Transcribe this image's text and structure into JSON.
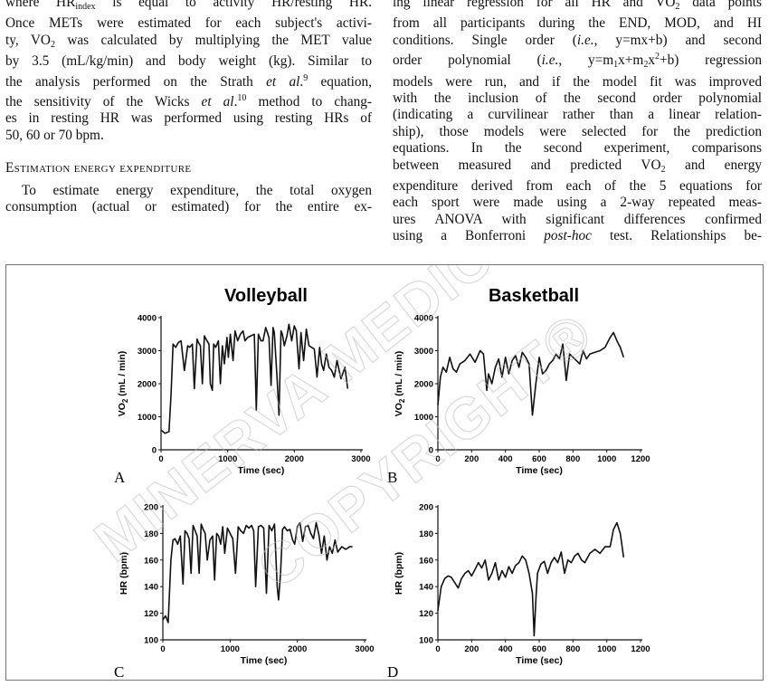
{
  "text": {
    "left": {
      "l1_a": "where HR",
      "l1_sub": "index",
      "l1_b": " is equal to activity HR/resting HR.",
      "l2": "Once METs were estimated for each subject's activi-",
      "l3_a": "ty, VO",
      "l3_sub": "2",
      "l3_b": " was calculated by multiplying the MET value",
      "l4": "by 3.5 (mL/kg/min) and body weight (kg). Similar to",
      "l5_a": "the analysis performed on the Strath ",
      "l5_it": "et al",
      "l5_b": ".",
      "l5_sup": "9",
      "l5_c": " equation,",
      "l6_a": "the sensitivity of the Wicks ",
      "l6_it": "et al",
      "l6_b": ".",
      "l6_sup": "10",
      "l6_c": " method to chang-",
      "l7": "es in resting HR was performed using resting HRs of",
      "l8": "50, 60 or 70 bpm.",
      "heading": "Estimation energy expenditure",
      "l9": "To estimate energy expenditure, the total oxygen",
      "l10": "consumption (actual or estimated) for the entire ex-"
    },
    "right": {
      "r1_a": "ing linear regression for all HR and VO",
      "r1_sub": "2",
      "r1_b": " data points",
      "r2": "from all participants during the END, MOD, and HI",
      "r3_a": "conditions. Single order (",
      "r3_it": "i.e.",
      "r3_b": ", y=mx+b) and second",
      "r4_a": "order polynomial (",
      "r4_it": "i.e.",
      "r4_b": ",  y=m",
      "r4_s1": "1",
      "r4_c": "x+m",
      "r4_s2": "2",
      "r4_d": "x",
      "r4_sup": "2",
      "r4_e": "+b) regression",
      "r5": "models were run, and if the model fit was improved",
      "r6": "with the inclusion of the second order polynomial",
      "r7": "(indicating a curvilinear rather than a linear relation-",
      "r8": "ship), those models were selected for the prediction",
      "r9": "equations. In the second experiment, comparisons",
      "r10_a": "between measured and predicted VO",
      "r10_sub": "2",
      "r10_b": " and energy",
      "r11": "expenditure derived from each of the 5 equations for",
      "r12": "each sport were made using a 2-way repeated meas-",
      "r13": "ures ANOVA with significant differences confirmed",
      "r14_a": "using a Bonferroni ",
      "r14_it": "post-hoc",
      "r14_b": " test. Relationships be-"
    }
  },
  "watermark": {
    "line1": "MINERVA MEDICA",
    "line2": "COPYRIGHT®"
  },
  "chart_data": [
    {
      "type": "line",
      "panel": "A",
      "title": "Volleyball",
      "xlabel": "Time (sec)",
      "ylabel_main": "VO",
      "ylabel_sub": "2",
      "ylabel_rest": " (mL / min)",
      "xlim": [
        0,
        3000
      ],
      "ylim": [
        0,
        4000
      ],
      "xticks": [
        0,
        1000,
        2000,
        3000
      ],
      "yticks": [
        0,
        1000,
        2000,
        3000,
        4000
      ],
      "x": [
        0,
        60,
        120,
        150,
        180,
        220,
        260,
        300,
        350,
        400,
        430,
        470,
        500,
        540,
        560,
        590,
        620,
        650,
        690,
        720,
        740,
        770,
        790,
        820,
        860,
        890,
        920,
        950,
        990,
        1010,
        1040,
        1080,
        1110,
        1150,
        1190,
        1230,
        1260,
        1300,
        1350,
        1400,
        1430,
        1460,
        1500,
        1530,
        1570,
        1620,
        1650,
        1680,
        1700,
        1740,
        1770,
        1800,
        1820,
        1850,
        1890,
        1920,
        1960,
        2000,
        2030,
        2070,
        2100,
        2140,
        2180,
        2220,
        2260,
        2300,
        2340,
        2380,
        2410,
        2440,
        2480,
        2520,
        2560,
        2600,
        2640,
        2700,
        2760,
        2800
      ],
      "y": [
        600,
        500,
        550,
        1700,
        3200,
        3100,
        3250,
        3300,
        2400,
        3150,
        3100,
        3200,
        1850,
        3350,
        3250,
        3150,
        2000,
        3450,
        3300,
        3200,
        2000,
        1800,
        3200,
        3100,
        3300,
        2000,
        3150,
        2600,
        3400,
        2800,
        3500,
        2700,
        3600,
        3300,
        3500,
        3600,
        3300,
        3400,
        3450,
        3500,
        1200,
        3500,
        3300,
        3300,
        3700,
        3400,
        1950,
        3700,
        3550,
        2200,
        1050,
        3600,
        3500,
        3150,
        3450,
        3800,
        3300,
        3750,
        3600,
        2450,
        3550,
        2700,
        3650,
        3150,
        3100,
        3050,
        2200,
        3100,
        2600,
        2400,
        2900,
        2500,
        2400,
        2200,
        2700,
        2150,
        2500,
        1850
      ]
    },
    {
      "type": "line",
      "panel": "B",
      "title": "Basketball",
      "xlabel": "Time (sec)",
      "ylabel_main": "VO",
      "ylabel_sub": "2",
      "ylabel_rest": " (mL / min)",
      "xlim": [
        0,
        1200
      ],
      "ylim": [
        0,
        4000
      ],
      "xticks": [
        0,
        200,
        400,
        600,
        800,
        1000,
        1200
      ],
      "yticks": [
        0,
        1000,
        2000,
        3000,
        4000
      ],
      "x": [
        0,
        15,
        30,
        50,
        70,
        90,
        110,
        130,
        160,
        190,
        220,
        250,
        270,
        290,
        300,
        320,
        340,
        360,
        380,
        400,
        420,
        440,
        460,
        480,
        500,
        520,
        540,
        560,
        580,
        600,
        620,
        640,
        660,
        680,
        700,
        720,
        740,
        760,
        780,
        800,
        820,
        840,
        860,
        880,
        900,
        930,
        960,
        990,
        1020,
        1040,
        1060,
        1080,
        1100
      ],
      "y": [
        1350,
        2200,
        2500,
        2350,
        2800,
        2450,
        2350,
        2600,
        2700,
        2900,
        2650,
        3000,
        2900,
        1800,
        2300,
        2000,
        2500,
        2750,
        2200,
        2800,
        2300,
        2700,
        2850,
        2500,
        2950,
        2800,
        2600,
        1050,
        2000,
        2800,
        2300,
        2400,
        2600,
        2700,
        2900,
        2750,
        3200,
        2100,
        2900,
        2800,
        2700,
        2600,
        3000,
        2750,
        2900,
        2950,
        3000,
        3100,
        3400,
        3550,
        3300,
        3100,
        2800
      ]
    },
    {
      "type": "line",
      "panel": "C",
      "title": "",
      "xlabel": "Time (sec)",
      "ylabel": "HR (bpm)",
      "xlim": [
        0,
        3000
      ],
      "ylim": [
        100,
        200
      ],
      "xticks": [
        0,
        1000,
        2000,
        3000
      ],
      "yticks": [
        100,
        120,
        140,
        160,
        180,
        200
      ],
      "x": [
        0,
        40,
        80,
        120,
        150,
        180,
        220,
        260,
        300,
        330,
        360,
        390,
        420,
        450,
        480,
        510,
        540,
        570,
        600,
        630,
        660,
        700,
        740,
        770,
        800,
        830,
        860,
        890,
        920,
        960,
        1000,
        1040,
        1080,
        1120,
        1160,
        1200,
        1240,
        1280,
        1320,
        1350,
        1380,
        1420,
        1460,
        1500,
        1540,
        1580,
        1620,
        1660,
        1700,
        1720,
        1750,
        1780,
        1810,
        1850,
        1890,
        1930,
        1960,
        2000,
        2040,
        2080,
        2120,
        2160,
        2200,
        2240,
        2280,
        2320,
        2360,
        2400,
        2440,
        2480,
        2520,
        2560,
        2600,
        2660,
        2720,
        2780,
        2820
      ],
      "y": [
        115,
        118,
        113,
        160,
        175,
        176,
        172,
        178,
        142,
        182,
        180,
        176,
        150,
        186,
        182,
        178,
        150,
        187,
        183,
        180,
        160,
        175,
        178,
        145,
        180,
        178,
        172,
        185,
        165,
        184,
        180,
        176,
        150,
        185,
        182,
        180,
        186,
        184,
        186,
        182,
        140,
        185,
        186,
        184,
        135,
        186,
        182,
        187,
        140,
        130,
        150,
        183,
        185,
        182,
        183,
        175,
        172,
        185,
        188,
        174,
        185,
        186,
        180,
        176,
        188,
        179,
        165,
        178,
        160,
        170,
        165,
        175,
        166,
        170,
        168,
        170,
        170
      ]
    },
    {
      "type": "line",
      "panel": "D",
      "title": "",
      "xlabel": "Time (sec)",
      "ylabel": "HR (bpm)",
      "xlim": [
        0,
        1200
      ],
      "ylim": [
        100,
        200
      ],
      "xticks": [
        0,
        200,
        400,
        600,
        800,
        1000,
        1200
      ],
      "yticks": [
        100,
        120,
        140,
        160,
        180,
        200
      ],
      "x": [
        0,
        20,
        40,
        60,
        80,
        100,
        120,
        140,
        160,
        180,
        200,
        220,
        240,
        260,
        280,
        300,
        320,
        340,
        360,
        380,
        400,
        420,
        440,
        460,
        480,
        500,
        520,
        540,
        560,
        570,
        580,
        590,
        610,
        630,
        650,
        670,
        690,
        710,
        730,
        750,
        770,
        790,
        810,
        830,
        850,
        870,
        900,
        930,
        960,
        990,
        1020,
        1040,
        1060,
        1080,
        1100
      ],
      "y": [
        122,
        140,
        146,
        148,
        147,
        143,
        139,
        146,
        150,
        152,
        148,
        153,
        158,
        154,
        160,
        145,
        150,
        158,
        145,
        152,
        147,
        155,
        150,
        156,
        158,
        163,
        160,
        150,
        135,
        103,
        130,
        150,
        157,
        159,
        150,
        158,
        162,
        158,
        166,
        150,
        160,
        158,
        163,
        165,
        160,
        158,
        165,
        168,
        165,
        170,
        170,
        183,
        188,
        180,
        162
      ]
    }
  ]
}
